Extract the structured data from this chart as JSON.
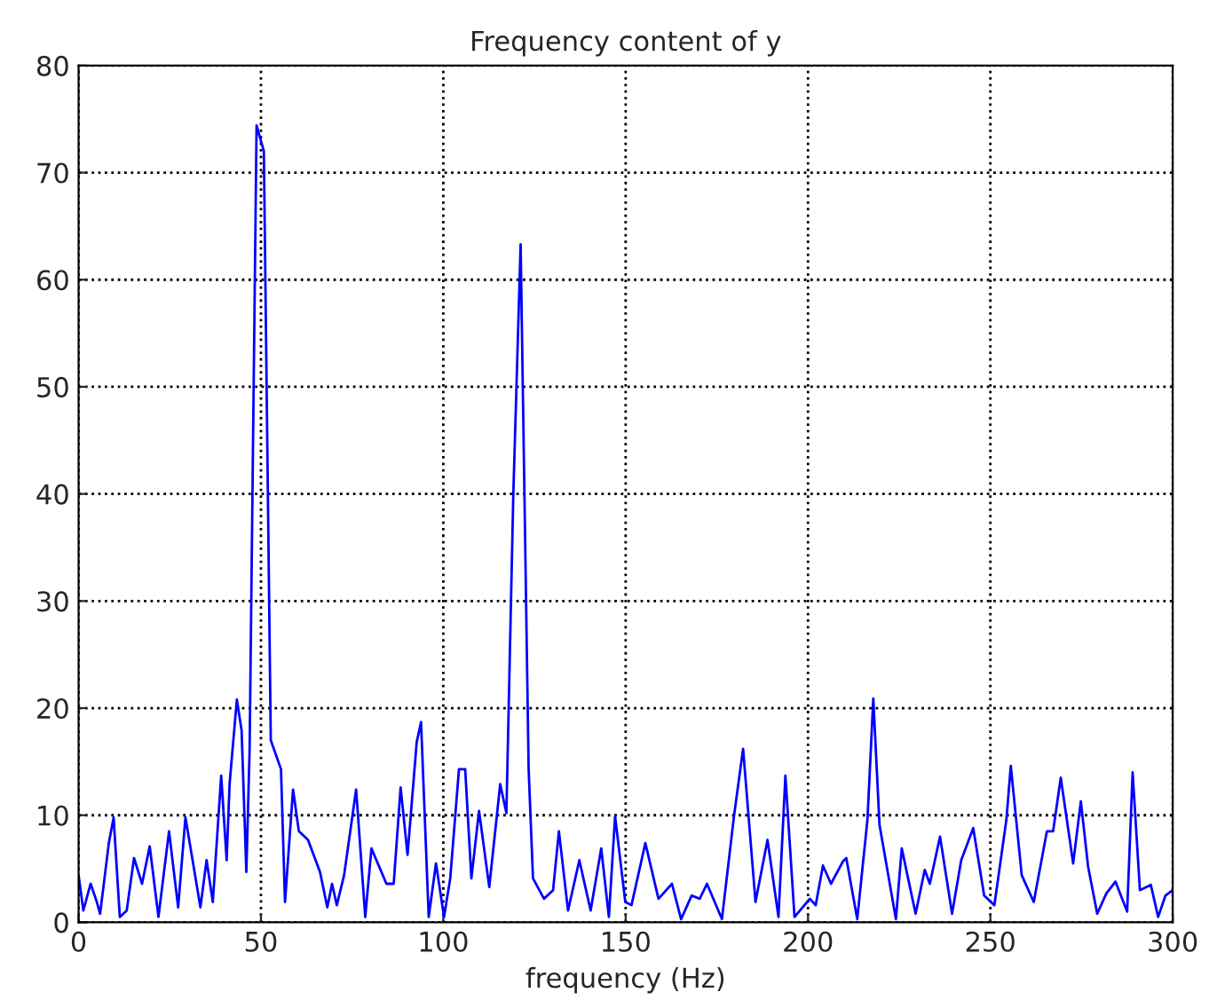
{
  "chart_data": {
    "type": "line",
    "title": "Frequency content of y",
    "xlabel": "frequency (Hz)",
    "xlim": [
      0,
      300
    ],
    "xticks": [
      0,
      50,
      100,
      150,
      200,
      250,
      300
    ],
    "ylim": [
      0,
      80
    ],
    "yticks": [
      0,
      10,
      20,
      30,
      40,
      50,
      60,
      70,
      80
    ],
    "grid": true,
    "line_style": "solid",
    "marker": "none",
    "series": [
      {
        "color": "#0000ff",
        "x": [
          0,
          1.3,
          3.3,
          5,
          5.9,
          8.3,
          9.6,
          11.3,
          13.2,
          15.2,
          17.4,
          19.5,
          21.9,
          24.8,
          27.3,
          29.3,
          31.8,
          33.4,
          35.1,
          36.8,
          39.1,
          40.6,
          41.4,
          43.4,
          44.7,
          46,
          46.9,
          48.8,
          50.8,
          52.7,
          55.5,
          56.6,
          58.8,
          60.4,
          62.9,
          66.2,
          68.2,
          69.5,
          70.8,
          72.8,
          76.1,
          78.6,
          80.3,
          84.4,
          86.4,
          88.3,
          90.2,
          92.7,
          93.9,
          96,
          98,
          100.2,
          101.9,
          104.3,
          106,
          107.7,
          109.8,
          112.6,
          115.6,
          117.3,
          119.2,
          121.2,
          123.4,
          124.6,
          127.6,
          130.1,
          131.7,
          134.2,
          137.3,
          140.4,
          143.3,
          145.4,
          147.1,
          149.9,
          151.6,
          155.4,
          159,
          162.7,
          165.2,
          168.1,
          170.3,
          172.3,
          176.4,
          179.7,
          182.2,
          185.6,
          188.9,
          191.9,
          193.8,
          196.3,
          200.5,
          202.1,
          204.1,
          206.3,
          209.6,
          210.5,
          213.5,
          216.3,
          217.9,
          219.6,
          224.1,
          225.7,
          229.5,
          232,
          233.4,
          236.2,
          239.5,
          242,
          245.3,
          248.3,
          251.1,
          254.4,
          255.6,
          258.6,
          261.9,
          265.5,
          267.2,
          269.3,
          272.7,
          274.8,
          276.8,
          279.3,
          281.8,
          284.3,
          287.5,
          289,
          291,
          294,
          296,
          298,
          300
        ],
        "values": [
          4.4,
          1.1,
          3.6,
          1.9,
          0.8,
          7.4,
          9.8,
          0.5,
          1.1,
          6,
          3.6,
          7.1,
          0.5,
          8.5,
          1.4,
          9.8,
          4.7,
          1.4,
          5.8,
          1.9,
          13.7,
          5.8,
          12.9,
          20.8,
          17.9,
          4.7,
          16.2,
          74.4,
          72,
          17,
          14.3,
          1.9,
          12.4,
          8.5,
          7.7,
          4.7,
          1.4,
          3.6,
          1.6,
          4.4,
          12.4,
          0.5,
          6.9,
          3.6,
          3.6,
          12.6,
          6.3,
          16.8,
          18.7,
          0.5,
          5.5,
          0.5,
          4.1,
          14.3,
          14.3,
          4.1,
          10.4,
          3.3,
          12.9,
          10.2,
          40,
          63.3,
          14.3,
          4.1,
          2.2,
          3,
          8.5,
          1.1,
          5.8,
          1.1,
          6.9,
          0.5,
          9.9,
          1.9,
          1.6,
          7.4,
          2.2,
          3.6,
          0.3,
          2.5,
          2.2,
          3.6,
          0.3,
          9.9,
          16.2,
          1.9,
          7.7,
          0.5,
          13.7,
          0.5,
          2.2,
          1.6,
          5.3,
          3.6,
          5.7,
          6,
          0.3,
          9.6,
          20.9,
          9.1,
          0.3,
          6.9,
          0.8,
          4.9,
          3.6,
          8,
          0.8,
          5.8,
          8.8,
          2.5,
          1.6,
          9.6,
          14.6,
          4.4,
          1.9,
          8.5,
          8.5,
          13.5,
          5.5,
          11.3,
          5.2,
          0.8,
          2.7,
          3.8,
          1,
          14,
          3,
          3.5,
          0.5,
          2.5,
          3
        ]
      }
    ]
  }
}
